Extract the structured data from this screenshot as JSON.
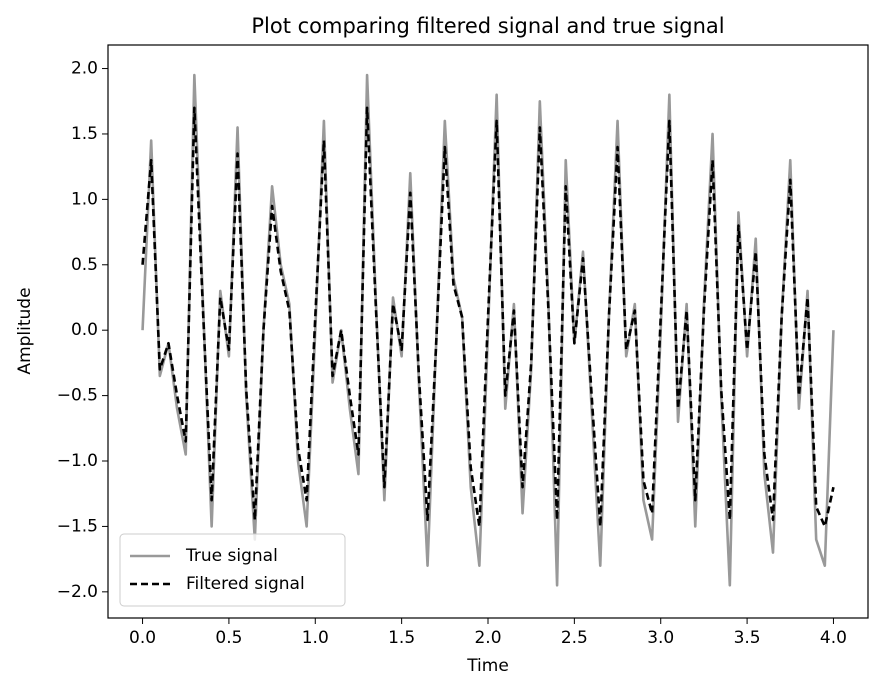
{
  "chart_data": {
    "type": "line",
    "title": "Plot comparing filtered signal and true signal",
    "x_label": "Time",
    "y_label": "Amplitude",
    "x": [
      0,
      0.05,
      0.1,
      0.15,
      0.2,
      0.25,
      0.3,
      0.35,
      0.4,
      0.45,
      0.5,
      0.55,
      0.6,
      0.65,
      0.7,
      0.75,
      0.8,
      0.85,
      0.9,
      0.95,
      1.0,
      1.05,
      1.1,
      1.15,
      1.2,
      1.25,
      1.3,
      1.35,
      1.4,
      1.45,
      1.5,
      1.55,
      1.6,
      1.65,
      1.7,
      1.75,
      1.8,
      1.85,
      1.9,
      1.95,
      2.0,
      2.05,
      2.1,
      2.15,
      2.2,
      2.25,
      2.3,
      2.35,
      2.4,
      2.45,
      2.5,
      2.55,
      2.6,
      2.65,
      2.7,
      2.75,
      2.8,
      2.85,
      2.9,
      2.95,
      3.0,
      3.05,
      3.1,
      3.15,
      3.2,
      3.25,
      3.3,
      3.35,
      3.4,
      3.45,
      3.5,
      3.55,
      3.6,
      3.65,
      3.7,
      3.75,
      3.8,
      3.85,
      3.9,
      3.95,
      4.0
    ],
    "series": [
      {
        "name": "True signal",
        "color": "#999999",
        "dashed": false,
        "values": [
          0,
          1.45,
          -0.35,
          -0.1,
          -0.6,
          -0.95,
          1.95,
          0.2,
          -1.5,
          0.3,
          -0.2,
          1.55,
          -0.5,
          -1.6,
          0.0,
          1.1,
          0.5,
          0.2,
          -1.0,
          -1.5,
          0,
          1.6,
          -0.4,
          0.0,
          -0.6,
          -1.1,
          1.95,
          0.25,
          -1.3,
          0.25,
          -0.2,
          1.2,
          -0.4,
          -1.8,
          -0.1,
          1.6,
          0.4,
          0.1,
          -1.2,
          -1.8,
          0,
          1.8,
          -0.6,
          0.2,
          -1.4,
          -0.3,
          1.75,
          0.2,
          -1.95,
          1.3,
          -0.1,
          0.6,
          -0.6,
          -1.8,
          0.1,
          1.6,
          -0.2,
          0.2,
          -1.3,
          -1.6,
          0,
          1.8,
          -0.7,
          0.2,
          -1.5,
          0.2,
          1.5,
          -0.5,
          -1.95,
          0.9,
          -0.2,
          0.7,
          -1.1,
          -1.7,
          0.1,
          1.3,
          -0.6,
          0.3,
          -1.6,
          -1.8,
          0
        ]
      },
      {
        "name": "Filtered signal",
        "color": "#000000",
        "dashed": true,
        "values": [
          0.5,
          1.3,
          -0.3,
          -0.1,
          -0.5,
          -0.85,
          1.7,
          0.15,
          -1.3,
          0.25,
          -0.15,
          1.35,
          -0.45,
          -1.45,
          0.0,
          0.95,
          0.45,
          0.15,
          -0.9,
          -1.3,
          0.1,
          1.45,
          -0.35,
          0.0,
          -0.5,
          -0.95,
          1.7,
          0.2,
          -1.2,
          0.2,
          -0.15,
          1.05,
          -0.35,
          -1.45,
          -0.1,
          1.4,
          0.35,
          0.1,
          -1.05,
          -1.5,
          0.1,
          1.6,
          -0.5,
          0.15,
          -1.2,
          -0.25,
          1.55,
          0.15,
          -1.45,
          1.1,
          -0.1,
          0.55,
          -0.5,
          -1.5,
          0.1,
          1.4,
          -0.15,
          0.15,
          -1.15,
          -1.4,
          0.1,
          1.6,
          -0.6,
          0.15,
          -1.3,
          0.15,
          1.3,
          -0.45,
          -1.45,
          0.8,
          -0.15,
          0.6,
          -0.95,
          -1.45,
          0.1,
          1.15,
          -0.5,
          0.25,
          -1.35,
          -1.5,
          -1.2
        ]
      }
    ],
    "xlim": [
      -0.2,
      4.2
    ],
    "ylim": [
      -2.2,
      2.18
    ],
    "xticks": [
      {
        "value": 0,
        "label": "0.0"
      },
      {
        "value": 0.5,
        "label": "0.5"
      },
      {
        "value": 1,
        "label": "1.0"
      },
      {
        "value": 1.5,
        "label": "1.5"
      },
      {
        "value": 2,
        "label": "2.0"
      },
      {
        "value": 2.5,
        "label": "2.5"
      },
      {
        "value": 3,
        "label": "3.0"
      },
      {
        "value": 3.5,
        "label": "3.5"
      },
      {
        "value": 4,
        "label": "4.0"
      }
    ],
    "yticks": [
      {
        "value": -2,
        "label": "−2.0"
      },
      {
        "value": -1.5,
        "label": "−1.5"
      },
      {
        "value": -1,
        "label": "−1.0"
      },
      {
        "value": -0.5,
        "label": "−0.5"
      },
      {
        "value": 0,
        "label": "0.0"
      },
      {
        "value": 0.5,
        "label": "0.5"
      },
      {
        "value": 1,
        "label": "1.0"
      },
      {
        "value": 1.5,
        "label": "1.5"
      },
      {
        "value": 2,
        "label": "2.0"
      }
    ],
    "legend": "lower left",
    "grid": false
  }
}
